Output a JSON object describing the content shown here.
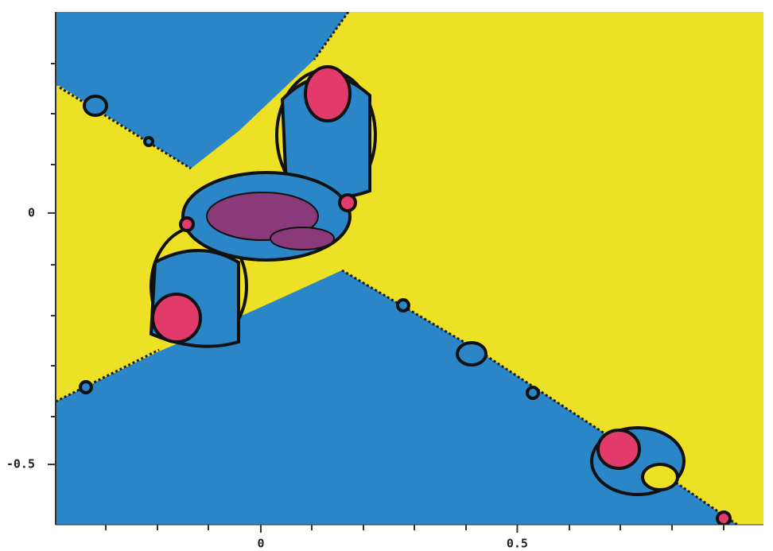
{
  "chart_data": {
    "type": "fractal",
    "xlim": [
      -0.4,
      0.98
    ],
    "ylim": [
      -0.62,
      0.4
    ],
    "xticks": [
      0,
      0.5
    ],
    "yticks": [
      -0.5,
      0
    ]
  }
}
